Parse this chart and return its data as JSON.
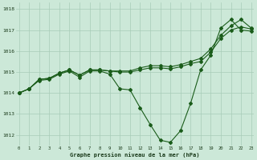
{
  "title": "Graphe pression niveau de la mer (hPa)",
  "bg_color": "#cce8d8",
  "grid_color": "#a8ccb8",
  "line_color": "#1a5c1a",
  "xlim": [
    -0.3,
    23.3
  ],
  "ylim": [
    1011.5,
    1018.3
  ],
  "yticks": [
    1012,
    1013,
    1014,
    1015,
    1016,
    1017,
    1018
  ],
  "xticks": [
    0,
    1,
    2,
    3,
    4,
    5,
    6,
    7,
    8,
    9,
    10,
    11,
    12,
    13,
    14,
    15,
    16,
    17,
    18,
    19,
    20,
    21,
    22,
    23
  ],
  "line1": [
    1014.0,
    1014.2,
    1014.6,
    1014.65,
    1014.9,
    1015.05,
    1014.75,
    1015.05,
    1015.05,
    1014.9,
    1014.2,
    1014.15,
    1013.3,
    1012.5,
    1011.75,
    1011.65,
    1012.2,
    1013.5,
    1015.1,
    1015.8,
    1017.1,
    1017.5,
    1017.0,
    1016.95
  ],
  "line2": [
    1014.0,
    1014.2,
    1014.65,
    1014.7,
    1014.95,
    1015.1,
    1014.85,
    1015.1,
    1015.1,
    1015.05,
    1015.0,
    1015.0,
    1015.1,
    1015.2,
    1015.2,
    1015.15,
    1015.25,
    1015.4,
    1015.5,
    1015.95,
    1016.6,
    1017.0,
    1017.15,
    1017.05
  ],
  "line3": [
    1014.0,
    1014.2,
    1014.65,
    1014.7,
    1014.95,
    1015.1,
    1014.85,
    1015.1,
    1015.1,
    1015.05,
    1015.05,
    1015.05,
    1015.2,
    1015.3,
    1015.3,
    1015.25,
    1015.35,
    1015.5,
    1015.65,
    1016.1,
    1016.75,
    1017.2,
    1017.5,
    1017.1
  ]
}
